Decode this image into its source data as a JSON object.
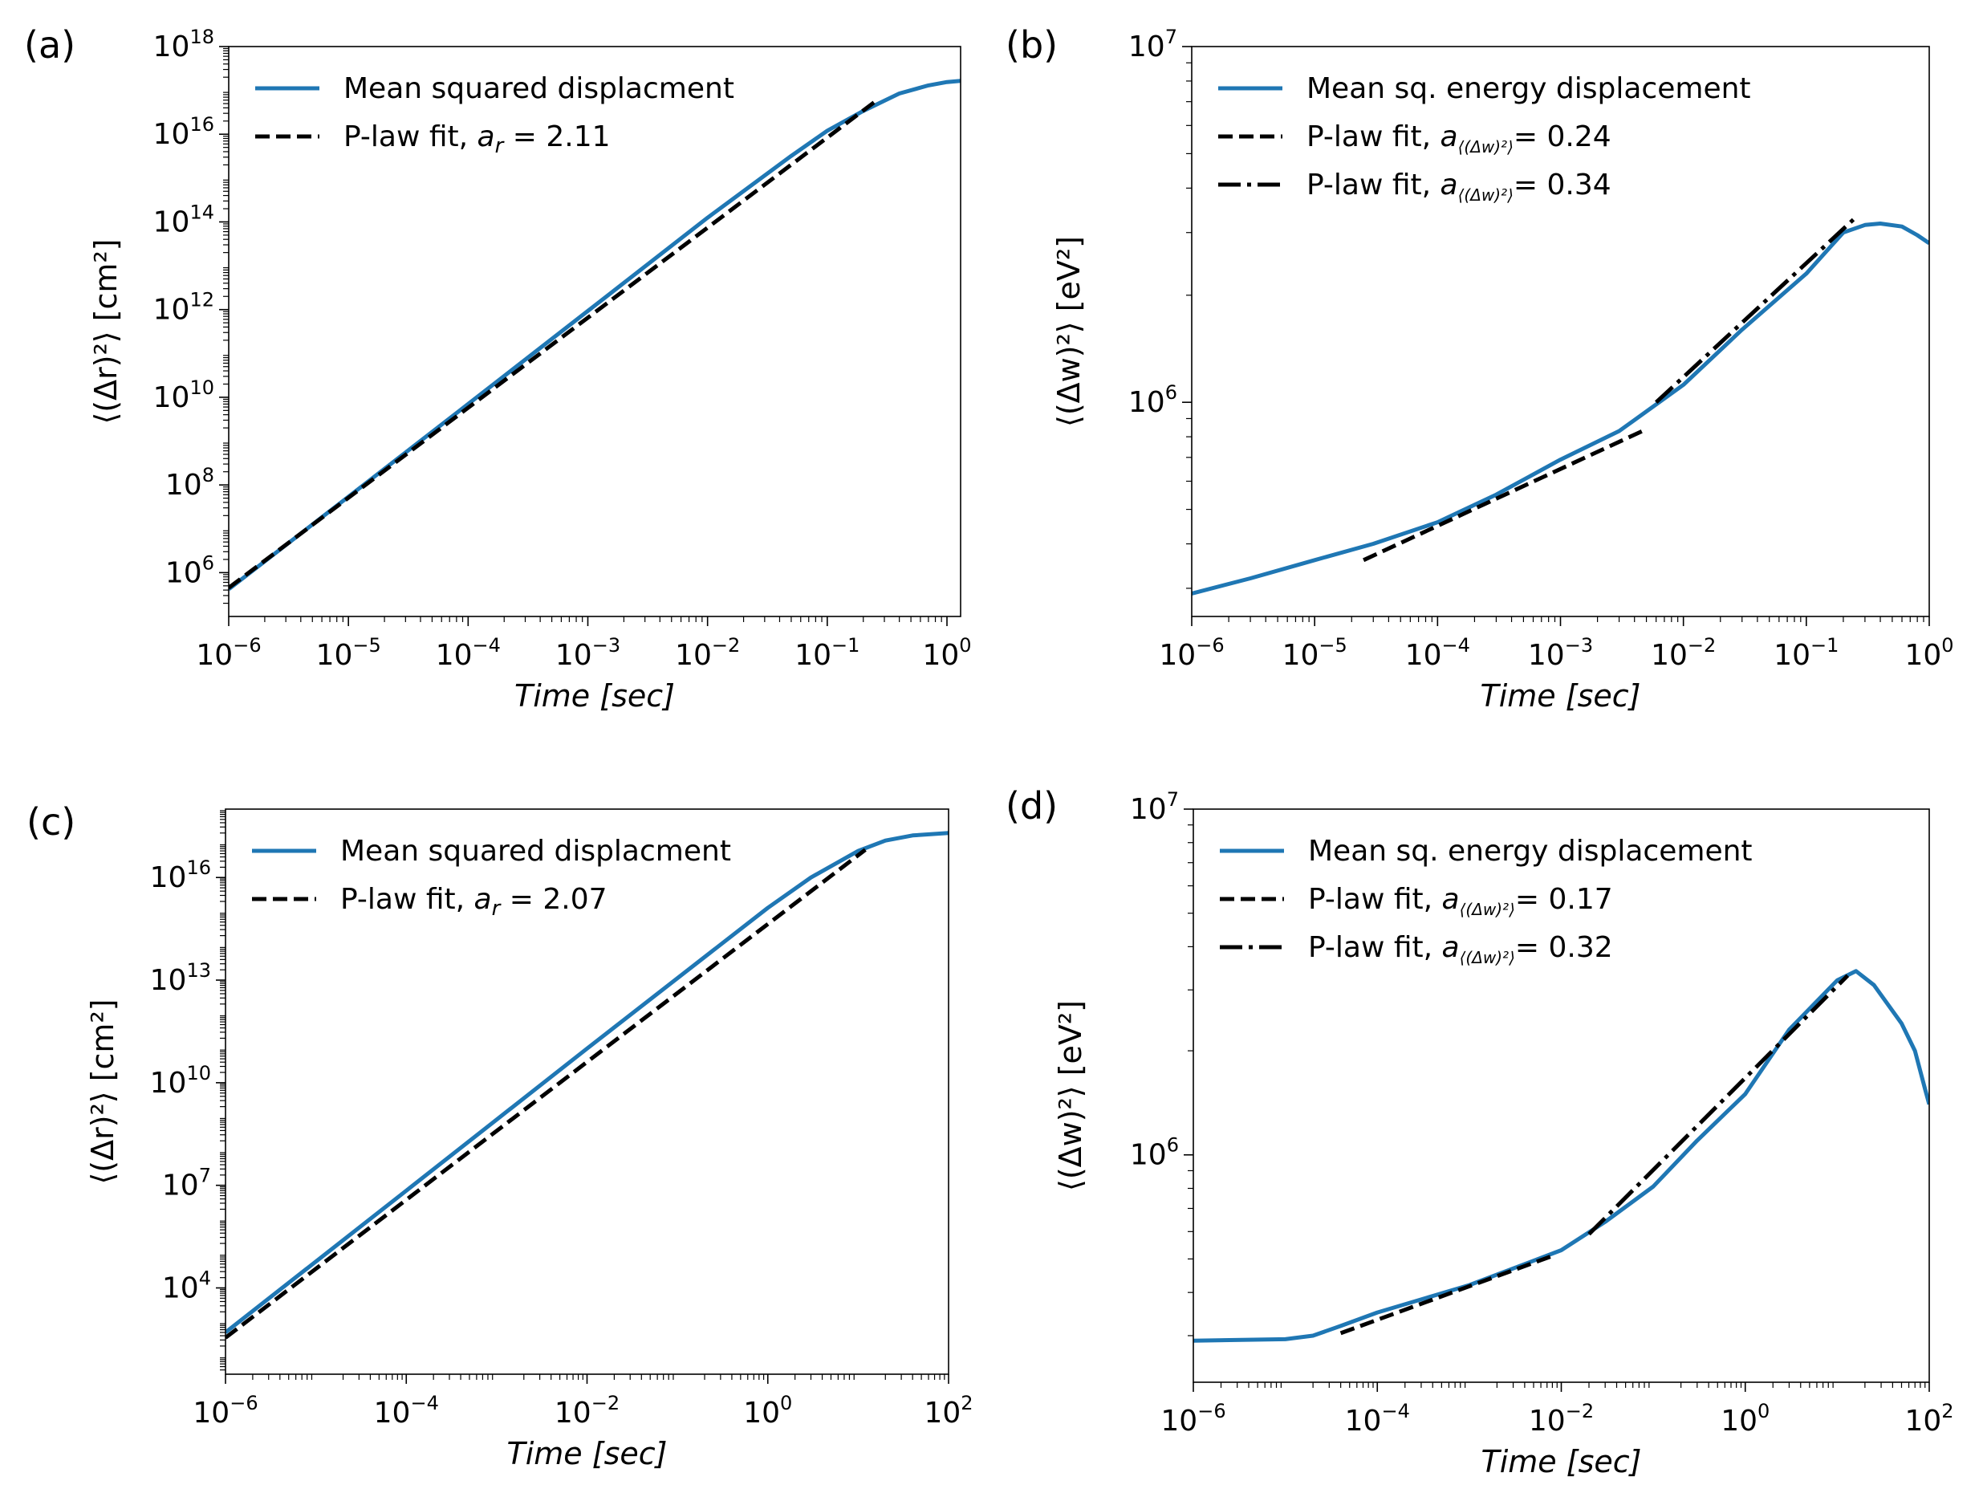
{
  "chart_data": [
    {
      "panel_label": "(a)",
      "type": "line",
      "xscale": "log",
      "yscale": "log",
      "xlim": [
        1e-06,
        1.3
      ],
      "ylim": [
        100000.0,
        1e+18
      ],
      "xlabel": "Time [sec]",
      "ylabel": "⟨(Δr)²⟩ [cm²]",
      "x_ticks": [
        {
          "v": 1e-06,
          "b": "10",
          "e": "−6"
        },
        {
          "v": 1e-05,
          "b": "10",
          "e": "−5"
        },
        {
          "v": 0.0001,
          "b": "10",
          "e": "−4"
        },
        {
          "v": 0.001,
          "b": "10",
          "e": "−3"
        },
        {
          "v": 0.01,
          "b": "10",
          "e": "−2"
        },
        {
          "v": 0.1,
          "b": "10",
          "e": "−1"
        },
        {
          "v": 1,
          "b": "10",
          "e": "0"
        }
      ],
      "y_ticks": [
        {
          "v": 1000000.0,
          "b": "10",
          "e": "6"
        },
        {
          "v": 100000000.0,
          "b": "10",
          "e": "8"
        },
        {
          "v": 10000000000.0,
          "b": "10",
          "e": "10"
        },
        {
          "v": 1000000000000.0,
          "b": "10",
          "e": "12"
        },
        {
          "v": 100000000000000.0,
          "b": "10",
          "e": "14"
        },
        {
          "v": 1e+16,
          "b": "10",
          "e": "16"
        },
        {
          "v": 1e+18,
          "b": "10",
          "e": "18"
        }
      ],
      "series": [
        {
          "name": "Mean squared displacment",
          "style": "solid",
          "color": "#1f77b4",
          "points": [
            [
              1e-06,
              420000.0
            ],
            [
              1e-05,
              54000000.0
            ],
            [
              0.0001,
              7000000000.0
            ],
            [
              0.001,
              930000000000.0
            ],
            [
              0.01,
              125000000000000.0
            ],
            [
              0.05,
              3200000000000000.0
            ],
            [
              0.1,
              1.2e+16
            ],
            [
              0.2,
              3.4e+16
            ],
            [
              0.4,
              8.5e+16
            ],
            [
              0.7,
              1.3e+17
            ],
            [
              1.0,
              1.55e+17
            ],
            [
              1.3,
              1.65e+17
            ]
          ]
        },
        {
          "name": "P-law fit",
          "fit_label_pre": "P-law fit, ",
          "fit_symbol": "a",
          "fit_sub": "r",
          "fit_value": "= 2.11",
          "style": "dashed",
          "color": "#000000",
          "points": [
            [
              1e-06,
              450000.0
            ],
            [
              0.25,
              5.5e+16
            ]
          ]
        }
      ]
    },
    {
      "panel_label": "(b)",
      "type": "line",
      "xscale": "log",
      "yscale": "log",
      "xlim": [
        1e-06,
        1
      ],
      "ylim": [
        250000.0,
        10000000.0
      ],
      "xlabel": "Time [sec]",
      "ylabel": "⟨(Δw)²⟩ [eV²]",
      "x_ticks": [
        {
          "v": 1e-06,
          "b": "10",
          "e": "−6"
        },
        {
          "v": 1e-05,
          "b": "10",
          "e": "−5"
        },
        {
          "v": 0.0001,
          "b": "10",
          "e": "−4"
        },
        {
          "v": 0.001,
          "b": "10",
          "e": "−3"
        },
        {
          "v": 0.01,
          "b": "10",
          "e": "−2"
        },
        {
          "v": 0.1,
          "b": "10",
          "e": "−1"
        },
        {
          "v": 1,
          "b": "10",
          "e": "0"
        }
      ],
      "y_ticks": [
        {
          "v": 1000000.0,
          "b": "10",
          "e": "6"
        },
        {
          "v": 10000000.0,
          "b": "10",
          "e": "7"
        }
      ],
      "series": [
        {
          "name": "Mean sq. energy displacement",
          "style": "solid",
          "color": "#1f77b4",
          "points": [
            [
              1e-06,
              290000.0
            ],
            [
              3e-06,
              320000.0
            ],
            [
              1e-05,
              360000.0
            ],
            [
              3e-05,
              400000.0
            ],
            [
              0.0001,
              460000.0
            ],
            [
              0.0003,
              550000.0
            ],
            [
              0.001,
              690000.0
            ],
            [
              0.003,
              830000.0
            ],
            [
              0.01,
              1120000.0
            ],
            [
              0.03,
              1600000.0
            ],
            [
              0.1,
              2300000.0
            ],
            [
              0.2,
              3000000.0
            ],
            [
              0.3,
              3150000.0
            ],
            [
              0.4,
              3180000.0
            ],
            [
              0.6,
              3120000.0
            ],
            [
              0.8,
              2950000.0
            ],
            [
              1.0,
              2800000.0
            ]
          ]
        },
        {
          "name": "P-law fit",
          "fit_label_pre": "P-law fit, ",
          "fit_symbol": "a",
          "fit_sub": "⟨(Δw)²⟩",
          "fit_value": "= 0.24",
          "style": "dashed",
          "color": "#000000",
          "points": [
            [
              2.5e-05,
              360000.0
            ],
            [
              0.005,
              840000.0
            ]
          ]
        },
        {
          "name": "P-law fit",
          "fit_label_pre": "P-law fit, ",
          "fit_symbol": "a",
          "fit_sub": "⟨(Δw)²⟩",
          "fit_value": "= 0.34",
          "style": "dashdot",
          "color": "#000000",
          "points": [
            [
              0.006,
              1000000.0
            ],
            [
              0.25,
              3300000.0
            ]
          ]
        }
      ]
    },
    {
      "panel_label": "(c)",
      "type": "line",
      "xscale": "log",
      "yscale": "log",
      "xlim": [
        1e-06,
        100
      ],
      "ylim": [
        30.0,
        1e+18
      ],
      "xlabel": "Time [sec]",
      "ylabel": "⟨(Δr)²⟩ [cm²]",
      "x_ticks": [
        {
          "v": 1e-06,
          "b": "10",
          "e": "−6"
        },
        {
          "v": 0.0001,
          "b": "10",
          "e": "−4"
        },
        {
          "v": 0.01,
          "b": "10",
          "e": "−2"
        },
        {
          "v": 1,
          "b": "10",
          "e": "0"
        },
        {
          "v": 100,
          "b": "10",
          "e": "2"
        }
      ],
      "y_ticks": [
        {
          "v": 10000.0,
          "b": "10",
          "e": "4"
        },
        {
          "v": 10000000.0,
          "b": "10",
          "e": "7"
        },
        {
          "v": 10000000000.0,
          "b": "10",
          "e": "10"
        },
        {
          "v": 10000000000000.0,
          "b": "10",
          "e": "13"
        },
        {
          "v": 1e+16,
          "b": "10",
          "e": "16"
        }
      ],
      "series": [
        {
          "name": "Mean squared displacment",
          "style": "solid",
          "color": "#1f77b4",
          "points": [
            [
              1e-06,
              500.0
            ],
            [
              0.0001,
              7000000.0
            ],
            [
              0.01,
              100000000000.0
            ],
            [
              1,
              1300000000000000.0
            ],
            [
              3,
              1e+16
            ],
            [
              10,
              6e+16
            ],
            [
              20,
              1.2e+17
            ],
            [
              40,
              1.7e+17
            ],
            [
              100,
              2e+17
            ]
          ]
        },
        {
          "name": "P-law fit",
          "fit_label_pre": "P-law fit, ",
          "fit_symbol": "a",
          "fit_sub": "r",
          "fit_value": "= 2.07",
          "style": "dashed",
          "color": "#000000",
          "points": [
            [
              1e-06,
              350.0
            ],
            [
              12,
              6.5e+16
            ]
          ]
        }
      ]
    },
    {
      "panel_label": "(d)",
      "type": "line",
      "xscale": "log",
      "yscale": "log",
      "xlim": [
        1e-06,
        100
      ],
      "ylim": [
        220000.0,
        10000000.0
      ],
      "xlabel": "Time [sec]",
      "ylabel": "⟨(Δw)²⟩ [eV²]",
      "x_ticks": [
        {
          "v": 1e-06,
          "b": "10",
          "e": "−6"
        },
        {
          "v": 0.0001,
          "b": "10",
          "e": "−4"
        },
        {
          "v": 0.01,
          "b": "10",
          "e": "−2"
        },
        {
          "v": 1,
          "b": "10",
          "e": "0"
        },
        {
          "v": 100,
          "b": "10",
          "e": "2"
        }
      ],
      "y_ticks": [
        {
          "v": 1000000.0,
          "b": "10",
          "e": "6"
        },
        {
          "v": 10000000.0,
          "b": "10",
          "e": "7"
        }
      ],
      "series": [
        {
          "name": "Mean sq. energy displacement",
          "style": "solid",
          "color": "#1f77b4",
          "points": [
            [
              1e-06,
              290000.0
            ],
            [
              1e-05,
              293000.0
            ],
            [
              2e-05,
              300000.0
            ],
            [
              4e-05,
              320000.0
            ],
            [
              0.0001,
              350000.0
            ],
            [
              0.001,
              420000.0
            ],
            [
              0.01,
              530000.0
            ],
            [
              0.03,
              640000.0
            ],
            [
              0.1,
              810000.0
            ],
            [
              0.3,
              1100000.0
            ],
            [
              1,
              1500000.0
            ],
            [
              3,
              2300000.0
            ],
            [
              10,
              3200000.0
            ],
            [
              16,
              3400000.0
            ],
            [
              25,
              3100000.0
            ],
            [
              50,
              2400000.0
            ],
            [
              70,
              2000000.0
            ],
            [
              90,
              1550000.0
            ],
            [
              100,
              1400000.0
            ]
          ]
        },
        {
          "name": "P-law fit",
          "fit_label_pre": "P-law fit, ",
          "fit_symbol": "a",
          "fit_sub": "⟨(Δw)²⟩",
          "fit_value": "= 0.17",
          "style": "dashed",
          "color": "#000000",
          "points": [
            [
              4e-05,
              305000.0
            ],
            [
              0.008,
              510000.0
            ]
          ]
        },
        {
          "name": "P-law fit",
          "fit_label_pre": "P-law fit, ",
          "fit_symbol": "a",
          "fit_sub": "⟨(Δw)²⟩",
          "fit_value": "= 0.32",
          "style": "dashdot",
          "color": "#000000",
          "points": [
            [
              0.02,
              590000.0
            ],
            [
              13,
              3300000.0
            ]
          ]
        }
      ]
    }
  ]
}
